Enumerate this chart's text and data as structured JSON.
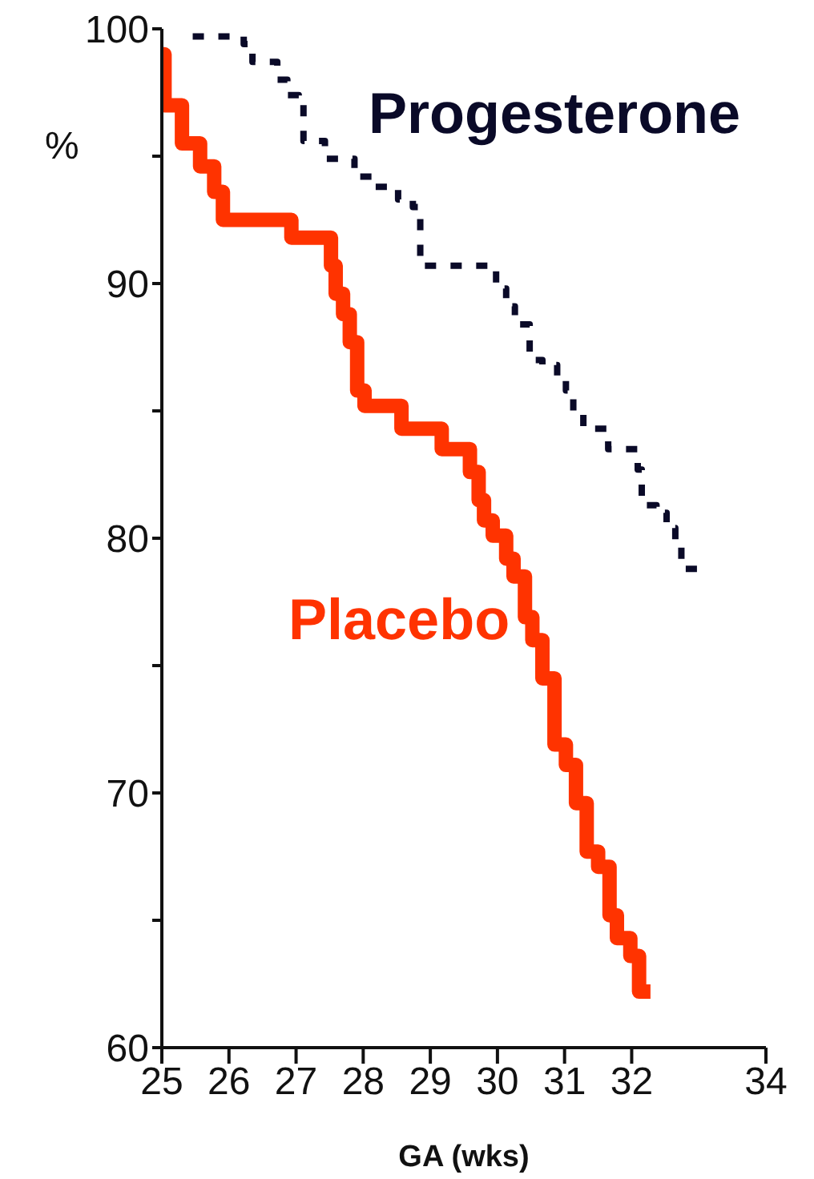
{
  "chart_data": {
    "type": "step",
    "xlabel": "GA (wks)",
    "ylabel": "%",
    "xlim": [
      25,
      34
    ],
    "xticks": [
      25,
      26,
      27,
      28,
      29,
      30,
      31,
      32,
      34
    ],
    "ylim": [
      60,
      100
    ],
    "yticks": [
      60,
      {
        "value": 65,
        "label": null
      },
      70,
      {
        "value": 75,
        "label": null
      },
      80,
      {
        "value": 85,
        "label": null
      },
      90,
      {
        "value": 95,
        "label": null
      },
      100
    ],
    "grid": false,
    "legend": false,
    "series": [
      {
        "name": "Progesterone",
        "color": "#0a0a28",
        "line_style": "dashed",
        "x": [
          25.46,
          26.22,
          26.35,
          26.72,
          26.87,
          27.04,
          27.11,
          27.43,
          27.87,
          28.17,
          28.52,
          28.74,
          28.85,
          29.98,
          30.13,
          30.26,
          30.48,
          30.67,
          30.89,
          31.02,
          31.13,
          31.28,
          31.65,
          32.09,
          32.15,
          32.37,
          32.52,
          32.65,
          32.74,
          33.09
        ],
        "values": [
          99.7,
          99.4,
          98.7,
          98.0,
          97.4,
          97.1,
          95.6,
          94.9,
          94.2,
          93.8,
          93.3,
          93.0,
          90.7,
          89.8,
          89.1,
          88.4,
          87.0,
          86.8,
          86.3,
          85.8,
          85.0,
          84.3,
          83.5,
          82.7,
          81.3,
          81.0,
          80.4,
          79.7,
          78.8,
          78.8
        ]
      },
      {
        "name": "Placebo",
        "color": "#ff3300",
        "line_style": "solid",
        "x": [
          25.0,
          25.04,
          25.3,
          25.57,
          25.78,
          25.91,
          26.93,
          27.52,
          27.59,
          27.7,
          27.8,
          27.91,
          28.02,
          28.09,
          28.57,
          29.17,
          29.59,
          29.72,
          29.8,
          29.93,
          30.13,
          30.24,
          30.41,
          30.52,
          30.67,
          30.85,
          31.02,
          31.17,
          31.33,
          31.5,
          31.67,
          31.78,
          31.98,
          32.11,
          32.2,
          32.28
        ],
        "values": [
          99.0,
          97.0,
          95.5,
          94.6,
          93.6,
          92.5,
          91.8,
          90.7,
          89.6,
          88.8,
          87.7,
          85.8,
          85.2,
          85.2,
          84.3,
          83.5,
          82.6,
          81.5,
          80.7,
          80.1,
          79.2,
          78.5,
          76.9,
          76.0,
          74.5,
          71.9,
          71.1,
          69.6,
          67.7,
          67.1,
          65.2,
          64.3,
          63.6,
          62.2,
          62.2,
          62.2
        ]
      }
    ]
  }
}
